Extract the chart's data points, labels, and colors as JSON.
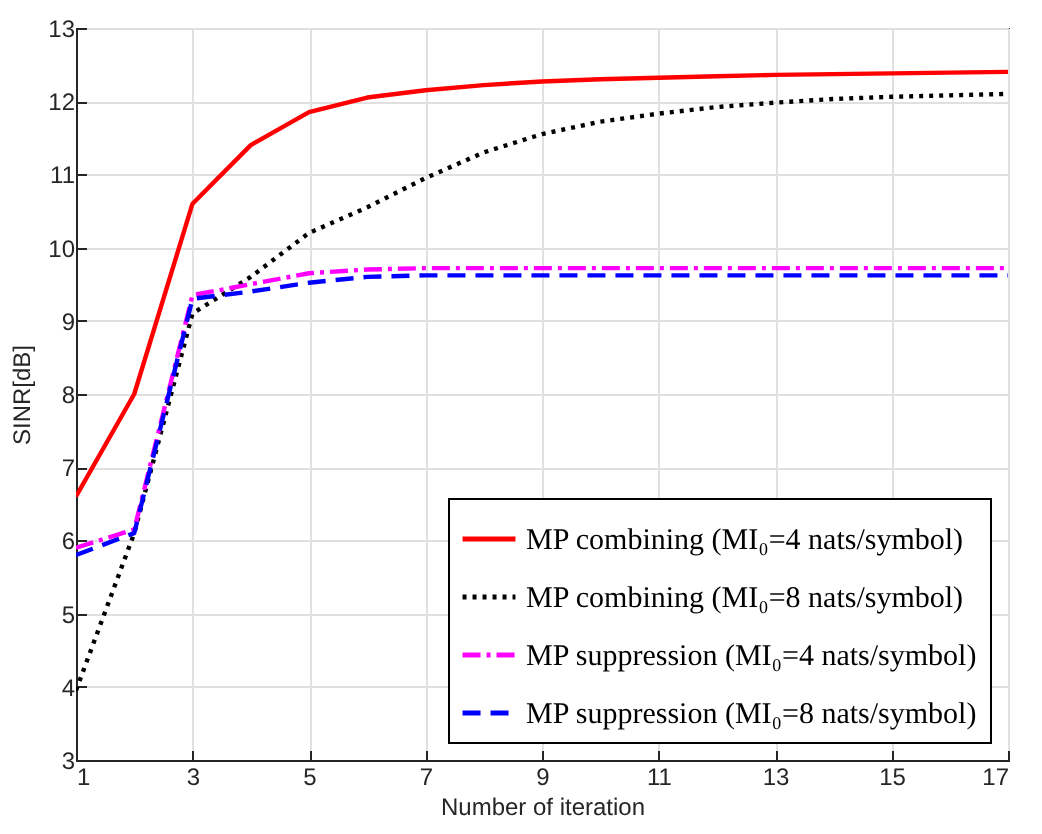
{
  "chart_data": {
    "type": "line",
    "xlabel": "Number of iteration",
    "ylabel": "SINR[dB]",
    "x": [
      1,
      2,
      3,
      4,
      5,
      6,
      7,
      8,
      9,
      10,
      11,
      12,
      13,
      14,
      15,
      16,
      17
    ],
    "series": [
      {
        "name": "MP combining (MI₀=4 nats/symbol)",
        "color": "#ff0000",
        "line_style": "solid",
        "values": [
          6.6,
          8.0,
          10.6,
          11.4,
          11.85,
          12.05,
          12.15,
          12.22,
          12.27,
          12.3,
          12.32,
          12.34,
          12.36,
          12.37,
          12.38,
          12.39,
          12.4
        ]
      },
      {
        "name": "MP combining (MI₀=8 nats/symbol)",
        "color": "#000000",
        "line_style": "dotted",
        "values": [
          3.95,
          6.1,
          9.1,
          9.6,
          10.2,
          10.55,
          10.95,
          11.3,
          11.55,
          11.72,
          11.83,
          11.92,
          11.98,
          12.03,
          12.06,
          12.08,
          12.1
        ]
      },
      {
        "name": "MP suppression (MI₀=4 nats/symbol)",
        "color": "#ff00ff",
        "line_style": "dashdot",
        "values": [
          5.9,
          6.15,
          9.35,
          9.5,
          9.65,
          9.7,
          9.72,
          9.72,
          9.72,
          9.72,
          9.72,
          9.72,
          9.72,
          9.72,
          9.72,
          9.72,
          9.72
        ]
      },
      {
        "name": "MP suppression (MI₀=8 nats/symbol)",
        "color": "#0000ff",
        "line_style": "dashed",
        "values": [
          5.8,
          6.1,
          9.3,
          9.4,
          9.52,
          9.6,
          9.62,
          9.62,
          9.62,
          9.62,
          9.62,
          9.62,
          9.62,
          9.62,
          9.62,
          9.62,
          9.62
        ]
      }
    ],
    "xlim": [
      1,
      17
    ],
    "xticks": [
      1,
      3,
      5,
      7,
      9,
      11,
      13,
      15,
      17
    ],
    "ylim": [
      3,
      13
    ],
    "yticks": [
      3,
      4,
      5,
      6,
      7,
      8,
      9,
      10,
      11,
      12,
      13
    ],
    "grid": true,
    "legend": "bottom right"
  }
}
